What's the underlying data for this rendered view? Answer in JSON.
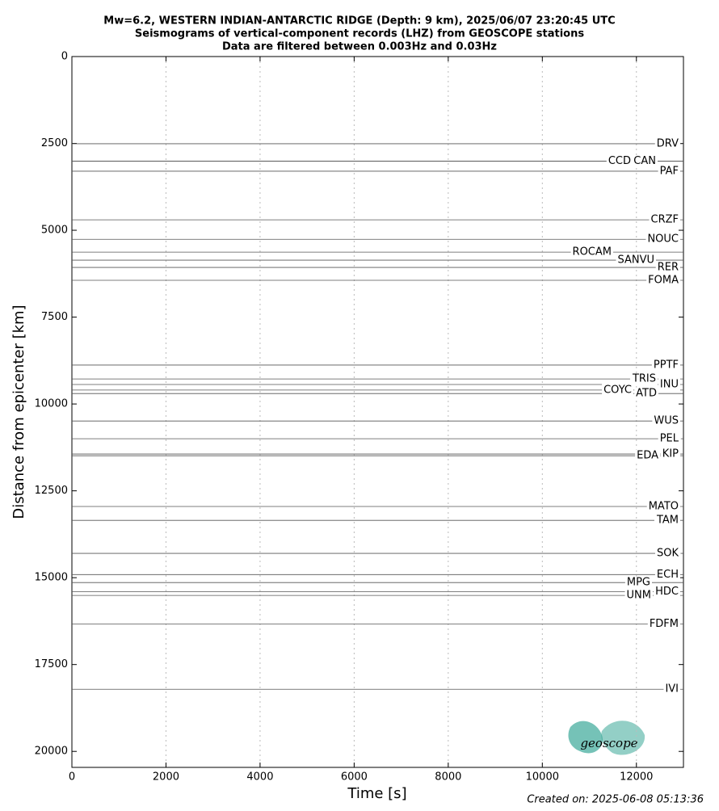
{
  "chart_data": {
    "type": "record_section",
    "title": [
      "Mw=6.2, WESTERN INDIAN-ANTARCTIC RIDGE (Depth: 9 km), 2025/06/07 23:20:45 UTC",
      "Seismograms of vertical-component records (LHZ) from GEOSCOPE stations",
      "Data are filtered between 0.003Hz and 0.03Hz"
    ],
    "x_label": "Time [s]",
    "y_label": "Distance from epicenter [km]",
    "xlim": [
      0,
      13000
    ],
    "xticks": [
      0,
      2000,
      4000,
      6000,
      8000,
      10000,
      12000
    ],
    "ylim": [
      0,
      20460
    ],
    "yticks": [
      0,
      2500,
      5000,
      7500,
      10000,
      12500,
      15000,
      17500,
      20000
    ],
    "y_inverted": true,
    "grid": true,
    "color": "#555555",
    "stations": [
      "DRV",
      "CCD",
      "CAN",
      "PAF",
      "CRZF",
      "NOUC",
      "ROCAM",
      "SANVU",
      "RER",
      "FOMA",
      "PPTF",
      "TRIS",
      "INU",
      "COYC",
      "ATD",
      "WUS",
      "PEL",
      "KIP",
      "EDA",
      "MATO",
      "TAM",
      "SOK",
      "ECH",
      "MPG",
      "HDC",
      "UNM",
      "FDFM",
      "IVI"
    ],
    "distances": [
      2510,
      3010,
      3010,
      3300,
      4700,
      5260,
      5630,
      5860,
      6070,
      6440,
      8880,
      9280,
      9440,
      9600,
      9700,
      10490,
      11000,
      11440,
      11490,
      12950,
      13350,
      14300,
      14910,
      15140,
      15400,
      15510,
      16330,
      18210
    ],
    "footer": "Created on: 2025-06-08 05:13:36",
    "logo": "geoscope"
  }
}
